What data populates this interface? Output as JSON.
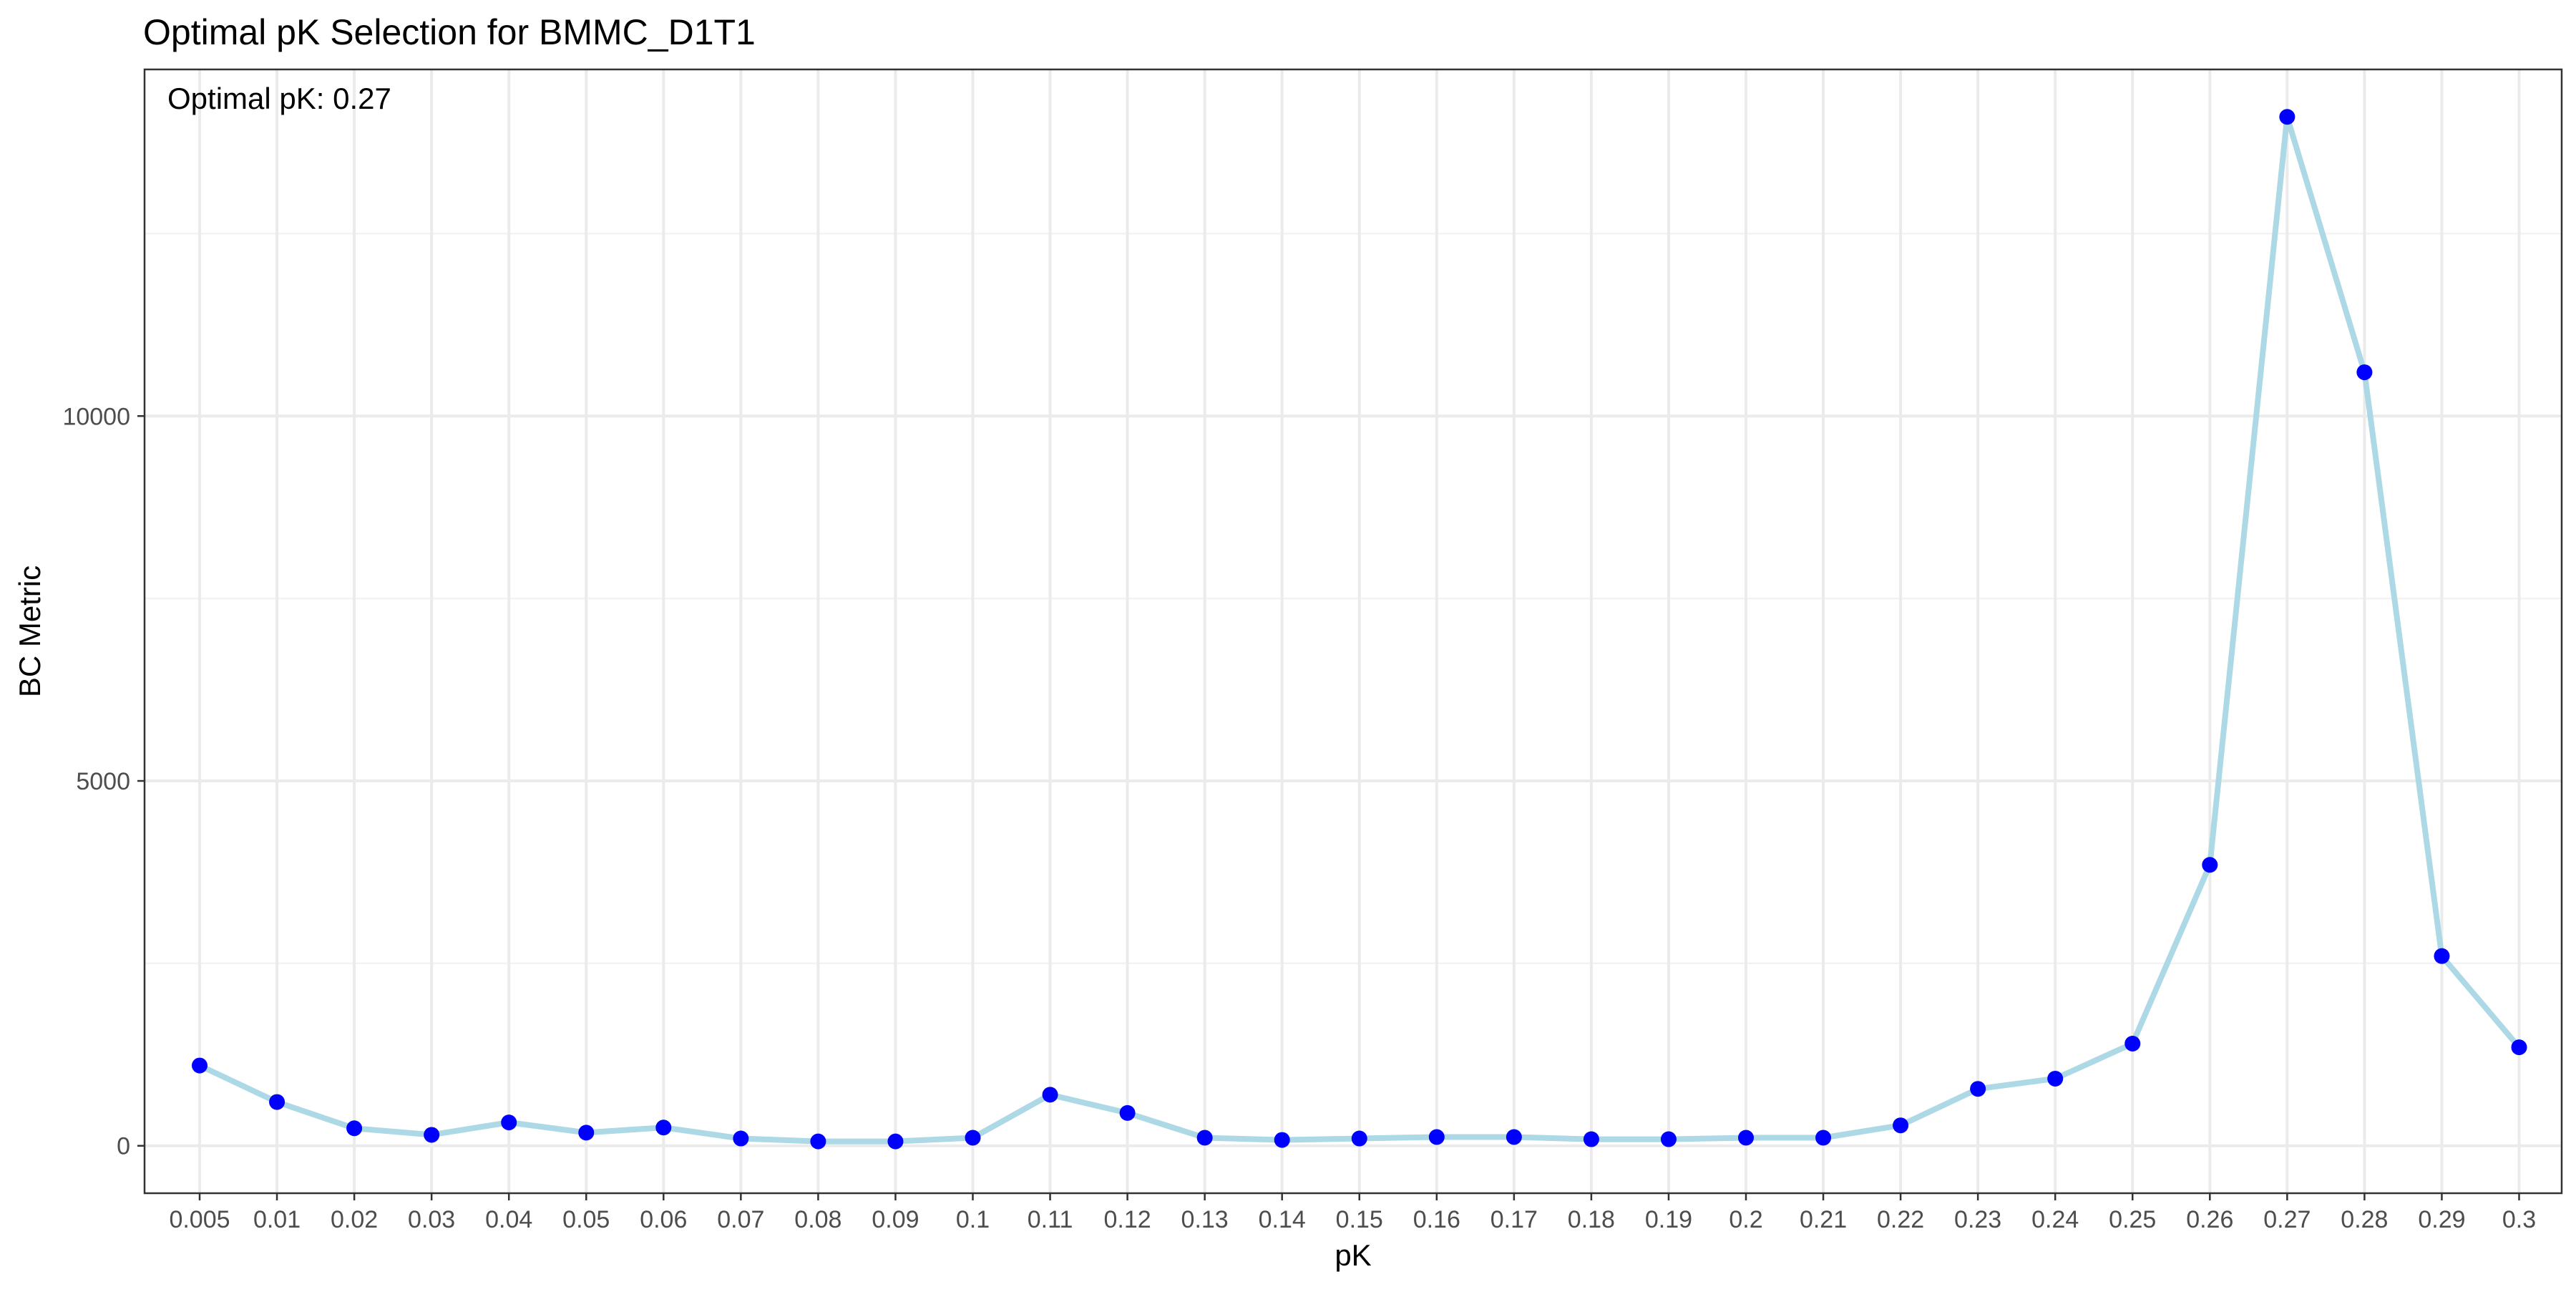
{
  "chart_data": {
    "type": "line",
    "title": "Optimal pK Selection for BMMC_D1T1",
    "xlabel": "pK",
    "ylabel": "BC Metric",
    "annotation": "Optimal pK: 0.27",
    "categories": [
      "0.005",
      "0.01",
      "0.02",
      "0.03",
      "0.04",
      "0.05",
      "0.06",
      "0.07",
      "0.08",
      "0.09",
      "0.1",
      "0.11",
      "0.12",
      "0.13",
      "0.14",
      "0.15",
      "0.16",
      "0.17",
      "0.18",
      "0.19",
      "0.2",
      "0.21",
      "0.22",
      "0.23",
      "0.24",
      "0.25",
      "0.26",
      "0.27",
      "0.28",
      "0.29",
      "0.3"
    ],
    "values": [
      1100,
      600,
      240,
      150,
      320,
      180,
      250,
      100,
      60,
      60,
      110,
      700,
      450,
      110,
      80,
      100,
      120,
      120,
      90,
      90,
      110,
      110,
      280,
      780,
      920,
      1400,
      3850,
      14100,
      10600,
      2600,
      1350
    ],
    "yticks": [
      0,
      5000,
      10000
    ],
    "ylim": [
      -650,
      14750
    ],
    "grid": true,
    "line_color": "#ADD8E6",
    "point_color": "#0000FF"
  }
}
